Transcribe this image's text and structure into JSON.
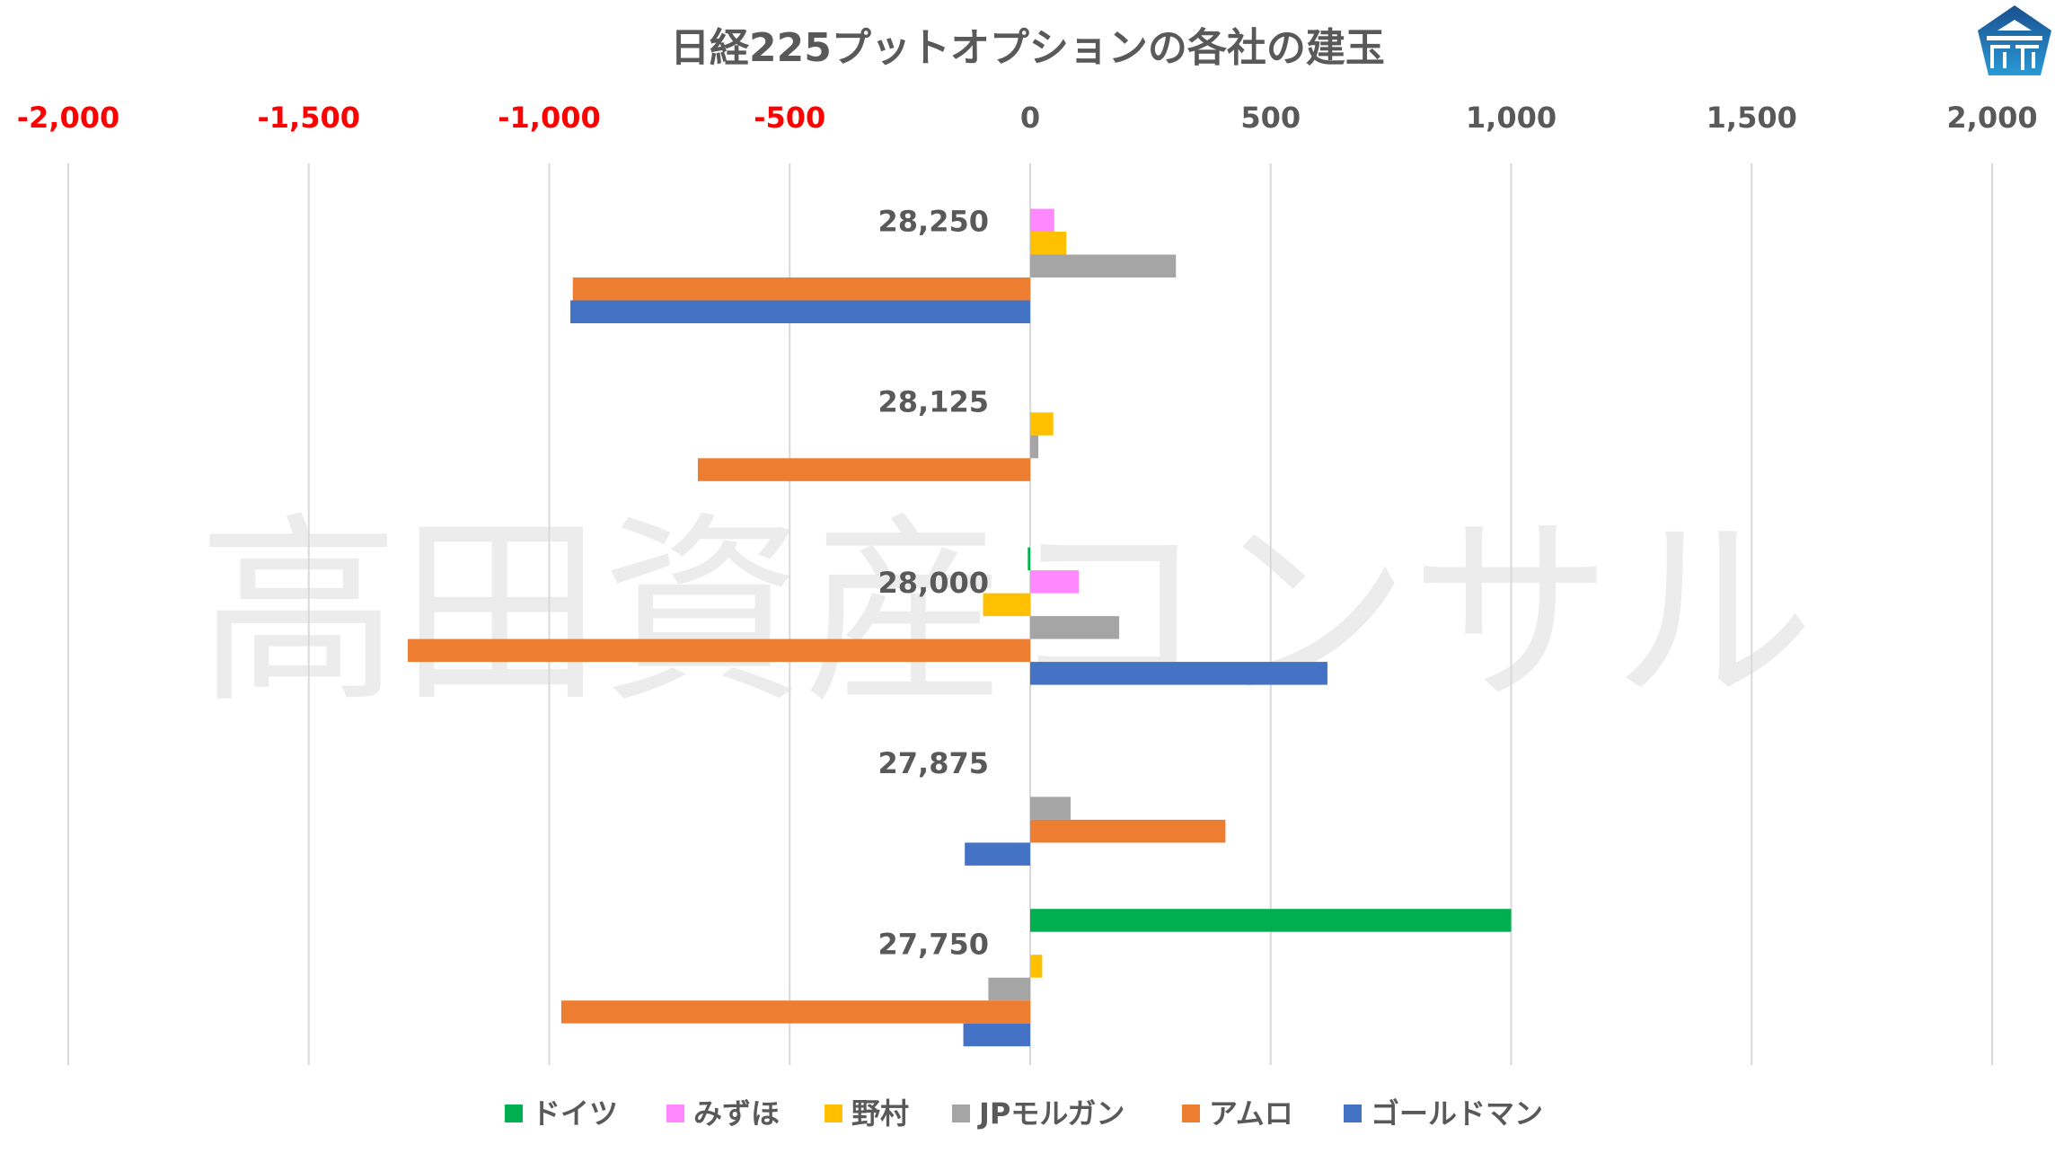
{
  "chart_data": {
    "type": "bar",
    "orientation": "horizontal",
    "title": "日経225プットオプションの各社の建玉",
    "categories": [
      "28,250",
      "28,125",
      "28,000",
      "27,875",
      "27,750"
    ],
    "xlim": [
      -2000,
      2000
    ],
    "xticks": [
      -2000,
      -1500,
      -1000,
      -500,
      0,
      500,
      1000,
      1500,
      2000
    ],
    "xtick_labels": [
      "-2,000",
      "-1,500",
      "-1,000",
      "-500",
      "0",
      "500",
      "1,000",
      "1,500",
      "2,000"
    ],
    "negative_tick_color": "#FF0000",
    "positive_tick_color": "#595959",
    "grid": true,
    "legend_position": "bottom",
    "series": [
      {
        "name": "ドイツ",
        "color": "#00B050",
        "values": [
          0,
          0,
          -5,
          0,
          1000
        ]
      },
      {
        "name": "みずほ",
        "color": "#FF88FF",
        "values": [
          50,
          0,
          101,
          0,
          0
        ]
      },
      {
        "name": "野村",
        "color": "#FFC000",
        "values": [
          75,
          48,
          -98,
          0,
          25
        ]
      },
      {
        "name": "JPモルガン",
        "color": "#A5A5A5",
        "values": [
          303,
          17,
          185,
          84,
          -87
        ]
      },
      {
        "name": "アムロ",
        "color": "#ED7D31",
        "values": [
          -951,
          -691,
          -1294,
          406,
          -975
        ]
      },
      {
        "name": "ゴールドマン",
        "color": "#4472C4",
        "values": [
          -956,
          0,
          618,
          -136,
          -139
        ]
      }
    ],
    "watermark": "高田資産コンサル"
  }
}
